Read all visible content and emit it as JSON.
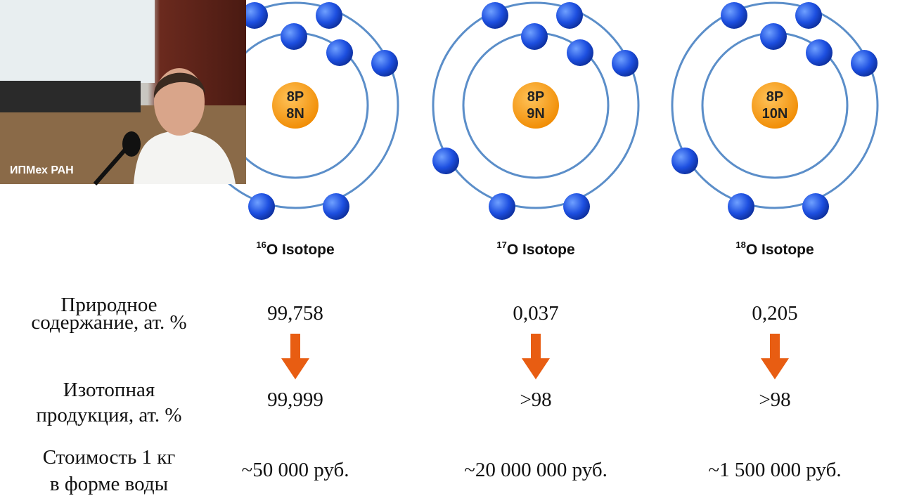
{
  "webcam": {
    "caption": "ИПМех РАН"
  },
  "isotopes": [
    {
      "mass": "16",
      "name": "O Isotope",
      "protons": "8P",
      "neutrons": "8N"
    },
    {
      "mass": "17",
      "name": "O Isotope",
      "protons": "8P",
      "neutrons": "9N"
    },
    {
      "mass": "18",
      "name": "O Isotope",
      "protons": "8P",
      "neutrons": "10N"
    }
  ],
  "table": {
    "rows": [
      {
        "label": [
          "Природное",
          "содержание, ат. %"
        ],
        "values": [
          "99,758",
          "0,037",
          "0,205"
        ]
      },
      {
        "label": [
          "Изотопная",
          "продукция, ат. %"
        ],
        "values": [
          "99,999",
          ">98",
          ">98"
        ]
      },
      {
        "label": [
          "Стоимость 1 кг",
          "в форме воды"
        ],
        "values": [
          "~50 000 руб.",
          "~20 000 000 руб.",
          "~1 500 000 руб."
        ]
      }
    ]
  }
}
